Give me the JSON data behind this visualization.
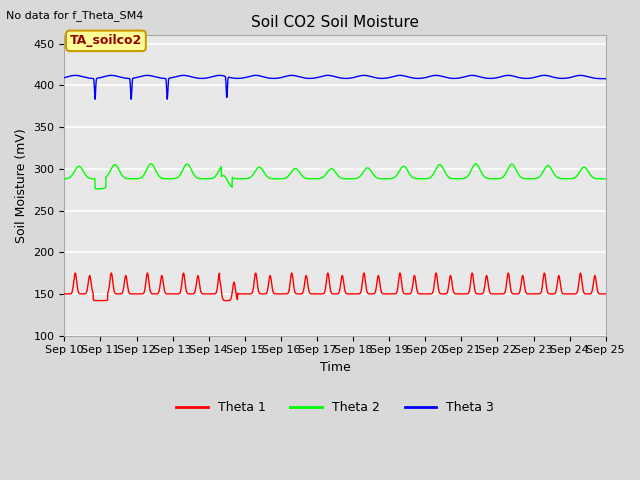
{
  "title": "Soil CO2 Soil Moisture",
  "no_data_text": "No data for f_Theta_SM4",
  "annotation_text": "TA_soilco2",
  "xlabel": "Time",
  "ylabel": "Soil Moisture (mV)",
  "ylim": [
    100,
    460
  ],
  "yticks": [
    100,
    150,
    200,
    250,
    300,
    350,
    400,
    450
  ],
  "x_tick_labels": [
    "Sep 10",
    "Sep 11",
    "Sep 12",
    "Sep 13",
    "Sep 14",
    "Sep 15",
    "Sep 16",
    "Sep 17",
    "Sep 18",
    "Sep 19",
    "Sep 20",
    "Sep 21",
    "Sep 22",
    "Sep 23",
    "Sep 24",
    "Sep 25"
  ],
  "theta1_color": "#ff0000",
  "theta2_color": "#00ff00",
  "theta3_color": "#0000ff",
  "legend_labels": [
    "Theta 1",
    "Theta 2",
    "Theta 3"
  ],
  "legend_colors": [
    "#ff0000",
    "#00ff00",
    "#0000ff"
  ],
  "background_color": "#d9d9d9",
  "plot_bg_color": "#e8e8e8",
  "grid_color": "#ffffff",
  "annotation_text_color": "#990000",
  "annotation_bg": "#ffff99",
  "annotation_border": "#cc9900",
  "title_fontsize": 11,
  "label_fontsize": 9,
  "tick_fontsize": 8
}
